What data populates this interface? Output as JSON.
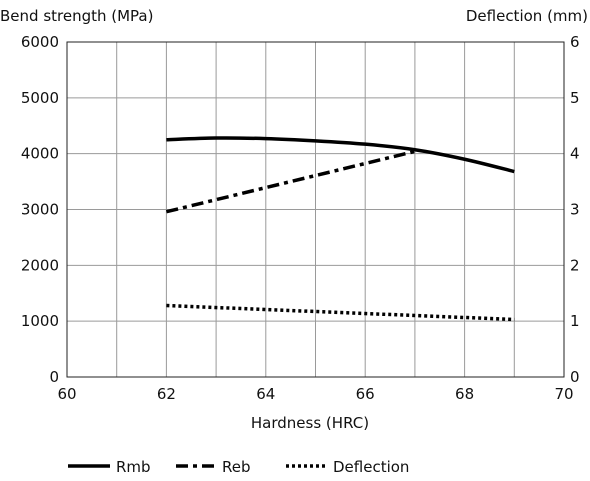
{
  "chart_data": {
    "type": "line",
    "y_left_label": "Bend strength (MPa)",
    "y_right_label": "Deflection (mm)",
    "xlabel": "Hardness (HRC)",
    "xlim": [
      60,
      70
    ],
    "x_ticks": [
      "60",
      "62",
      "64",
      "66",
      "68",
      "70"
    ],
    "ylim_left": [
      0,
      6000
    ],
    "y_left_ticks": [
      "0",
      "1000",
      "2000",
      "3000",
      "4000",
      "5000",
      "6000"
    ],
    "ylim_right": [
      0,
      6
    ],
    "y_right_ticks": [
      "0",
      "1",
      "2",
      "3",
      "4",
      "5",
      "6"
    ],
    "grid": true,
    "legend_position": "bottom",
    "series": [
      {
        "name": "Rmb",
        "axis": "left",
        "style": "solid",
        "x": [
          62,
          63,
          64,
          65,
          66,
          67,
          68,
          69
        ],
        "y": [
          4250,
          4280,
          4270,
          4230,
          4170,
          4070,
          3900,
          3680
        ]
      },
      {
        "name": "Reb",
        "axis": "left",
        "style": "dashdot",
        "x": [
          62,
          67
        ],
        "y": [
          2960,
          4040
        ]
      },
      {
        "name": "Deflection",
        "axis": "right",
        "style": "dotted",
        "x": [
          62,
          69
        ],
        "y": [
          1.28,
          1.03
        ]
      }
    ],
    "colors": {
      "lines": "#000000",
      "grid": "#9a9a9a"
    }
  }
}
